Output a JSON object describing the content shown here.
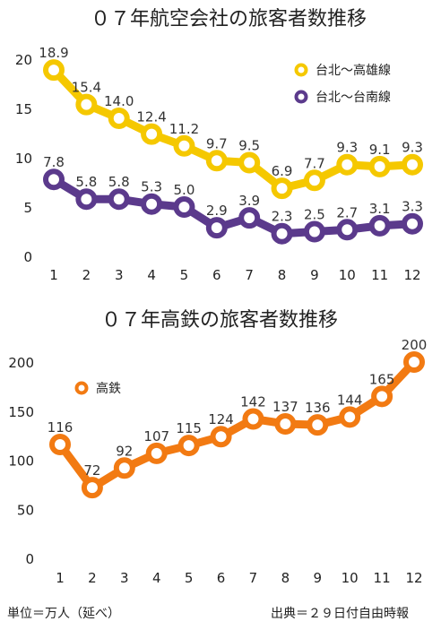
{
  "chart_data": [
    {
      "type": "line",
      "title": "０７年航空会社の旅客者数推移",
      "categories": [
        "1",
        "2",
        "3",
        "4",
        "5",
        "6",
        "7",
        "8",
        "9",
        "10",
        "11",
        "12"
      ],
      "ylim": [
        0,
        20
      ],
      "yticks": [
        "0",
        "5",
        "10",
        "15",
        "20"
      ],
      "legend": "top-right",
      "series": [
        {
          "name": "台北～高雄線",
          "color": "#f5c800",
          "values": [
            18.9,
            15.4,
            14.0,
            12.4,
            11.2,
            9.7,
            9.5,
            6.9,
            7.7,
            9.3,
            9.1,
            9.3
          ],
          "labels": [
            "18.9",
            "15.4",
            "14.0",
            "12.4",
            "11.2",
            "9.7",
            "9.5",
            "6.9",
            "7.7",
            "9.3",
            "9.1",
            "9.3"
          ]
        },
        {
          "name": "台北～台南線",
          "color": "#5b3a8c",
          "values": [
            7.8,
            5.8,
            5.8,
            5.3,
            5.0,
            2.9,
            3.9,
            2.3,
            2.5,
            2.7,
            3.1,
            3.3
          ],
          "labels": [
            "7.8",
            "5.8",
            "5.8",
            "5.3",
            "5.0",
            "2.9",
            "3.9",
            "2.3",
            "2.5",
            "2.7",
            "3.1",
            "3.3"
          ]
        }
      ]
    },
    {
      "type": "line",
      "title": "０７年高鉄の旅客者数推移",
      "categories": [
        "1",
        "2",
        "3",
        "4",
        "5",
        "6",
        "7",
        "8",
        "9",
        "10",
        "11",
        "12"
      ],
      "ylim": [
        0,
        200
      ],
      "yticks": [
        "0",
        "50",
        "100",
        "150",
        "200"
      ],
      "legend": "top-left",
      "series": [
        {
          "name": "高鉄",
          "color": "#f27a12",
          "values": [
            116,
            72,
            92,
            107,
            115,
            124,
            142,
            137,
            136,
            144,
            165,
            200
          ],
          "labels": [
            "116",
            "72",
            "92",
            "107",
            "115",
            "124",
            "142",
            "137",
            "136",
            "144",
            "165",
            "200"
          ]
        }
      ]
    }
  ],
  "footer": {
    "unit": "単位＝万人（延べ）",
    "source": "出典＝２９日付自由時報"
  }
}
